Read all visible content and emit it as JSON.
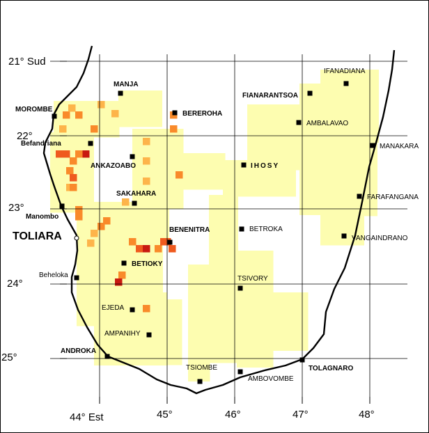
{
  "map": {
    "lat_labels": [
      "21° Sud",
      "22°",
      "23°",
      "24°",
      "25°"
    ],
    "lon_labels": [
      "44° Est",
      "45°",
      "46°",
      "47°",
      "48°"
    ],
    "region_label": "TOLIARA",
    "towns": [
      {
        "name": "MANJA",
        "bold": true
      },
      {
        "name": "MOROMBE",
        "bold": true
      },
      {
        "name": "BEREROHA",
        "bold": true
      },
      {
        "name": "FIANARANTSOA",
        "bold": true
      },
      {
        "name": "IFANADIANA",
        "bold": false
      },
      {
        "name": "AMBALAVAO",
        "bold": false
      },
      {
        "name": "Befandriana",
        "bold": true
      },
      {
        "name": "ANKAZOABO",
        "bold": true
      },
      {
        "name": "IHOSY",
        "bold": true
      },
      {
        "name": "MANAKARA",
        "bold": false
      },
      {
        "name": "SAKAHARA",
        "bold": true
      },
      {
        "name": "FARAFANGANA",
        "bold": false
      },
      {
        "name": "Manombo",
        "bold": true
      },
      {
        "name": "BENENITRA",
        "bold": true
      },
      {
        "name": "BETROKA",
        "bold": false
      },
      {
        "name": "VANGAINDRANO",
        "bold": false
      },
      {
        "name": "BETIOKY",
        "bold": true
      },
      {
        "name": "Beheloka",
        "bold": false
      },
      {
        "name": "TSIVORY",
        "bold": false
      },
      {
        "name": "EJEDA",
        "bold": false
      },
      {
        "name": "AMPANIHY",
        "bold": false
      },
      {
        "name": "ANDROKA",
        "bold": true
      },
      {
        "name": "TSIOMBE",
        "bold": false
      },
      {
        "name": "AMBOVOMBE",
        "bold": false
      },
      {
        "name": "TOLAGNARO",
        "bold": true
      }
    ],
    "colors": {
      "light": "#fdfdb0",
      "orange_light": "#fdb44a",
      "orange": "#f98a2a",
      "orange_red": "#ef5a1e",
      "red": "#c81a10",
      "grid": "#000000",
      "coast": "#000000"
    }
  }
}
